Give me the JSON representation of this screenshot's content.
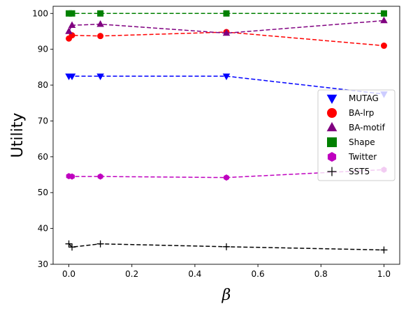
{
  "chart_data": {
    "type": "line",
    "xlabel": "β",
    "ylabel": "Utility",
    "xlim": [
      -0.05,
      1.05
    ],
    "ylim": [
      30,
      102
    ],
    "xticks": [
      0.0,
      0.2,
      0.4,
      0.6,
      0.8,
      1.0
    ],
    "xtick_labels": [
      "0.0",
      "0.2",
      "0.4",
      "0.6",
      "0.8",
      "1.0"
    ],
    "yticks": [
      30,
      40,
      50,
      60,
      70,
      80,
      90,
      100
    ],
    "ytick_labels": [
      "30",
      "40",
      "50",
      "60",
      "70",
      "80",
      "90",
      "100"
    ],
    "grid": false,
    "legend_position": "right",
    "x": [
      0.0,
      0.01,
      0.1,
      0.5,
      1.0
    ],
    "series": [
      {
        "name": "MUTAG",
        "marker": "triangle-down",
        "color": "#0000ff",
        "values": [
          82.5,
          82.5,
          82.5,
          82.5,
          77.5
        ]
      },
      {
        "name": "BA-lrp",
        "marker": "circle",
        "color": "#ff0000",
        "values": [
          93.0,
          93.9,
          93.7,
          94.8,
          91.0
        ]
      },
      {
        "name": "BA-motif",
        "marker": "triangle-up",
        "color": "#800080",
        "values": [
          95.0,
          96.7,
          97.0,
          94.5,
          98.0
        ]
      },
      {
        "name": "Shape",
        "marker": "square",
        "color": "#008000",
        "values": [
          100.0,
          100.0,
          100.0,
          100.0,
          100.0
        ]
      },
      {
        "name": "Twitter",
        "marker": "hexagon",
        "color": "#bf00bf",
        "values": [
          54.6,
          54.5,
          54.5,
          54.2,
          56.4
        ]
      },
      {
        "name": "SST5",
        "marker": "plus",
        "color": "#000000",
        "values": [
          35.7,
          34.8,
          35.7,
          34.9,
          34.0
        ]
      }
    ]
  }
}
